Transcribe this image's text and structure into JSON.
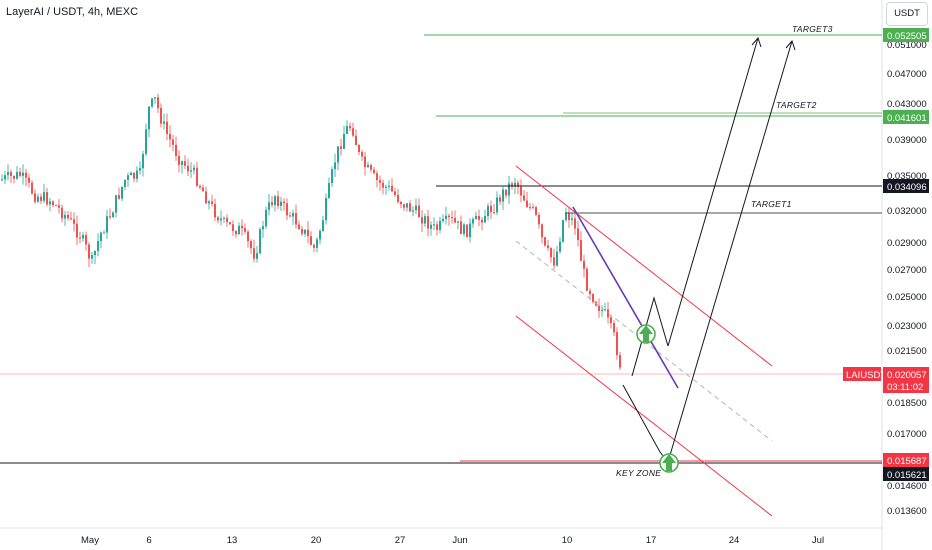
{
  "header": {
    "title": "LayerAI / USDT, 4h, MEXC",
    "currency": "USDT"
  },
  "colors": {
    "up": "#26a69a",
    "down": "#ef5350",
    "target_green": "#4caf50",
    "channel_red": "#f23645",
    "purple": "#673ab7",
    "black": "#131722"
  },
  "chart_data": {
    "type": "candlestick",
    "symbol": "LAIUSDT",
    "timeframe": "4h",
    "exchange": "MEXC",
    "x_ticks": [
      "May",
      "6",
      "13",
      "20",
      "27",
      "Jun",
      "10",
      "17",
      "24",
      "Jul"
    ],
    "y_ticks": [
      "0.051000",
      "0.047000",
      "0.043000",
      "0.039000",
      "0.035000",
      "0.032000",
      "0.029000",
      "0.027000",
      "0.025000",
      "0.023000",
      "0.021500",
      "0.018500",
      "0.017000",
      "0.014600",
      "0.013600"
    ],
    "price_tags": {
      "target3": "0.052505",
      "target2": "0.041601",
      "level_black": "0.034096",
      "current_symbol": "LAIUSDT",
      "current_price": "0.020057",
      "countdown": "03:11:02",
      "keyzone_red": "0.015687",
      "keyzone_black": "0.015621"
    },
    "annotations": {
      "target1": "TARGET1",
      "target2": "TARGET2",
      "target3": "TARGET3",
      "key_zone": "KEY ZONE"
    },
    "price_levels": {
      "target3": 0.052505,
      "target2": 0.041601,
      "level_black": 0.034096,
      "target1": 0.0316,
      "current": 0.020057,
      "keyzone_red": 0.015687,
      "keyzone_black": 0.015621
    }
  }
}
